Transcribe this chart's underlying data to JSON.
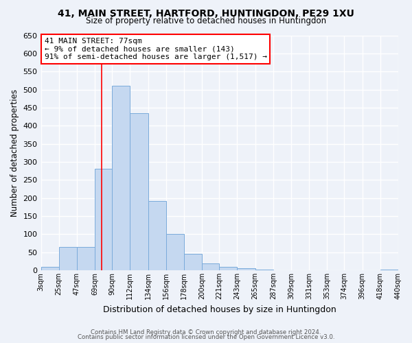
{
  "title": "41, MAIN STREET, HARTFORD, HUNTINGDON, PE29 1XU",
  "subtitle": "Size of property relative to detached houses in Huntingdon",
  "xlabel": "Distribution of detached houses by size in Huntingdon",
  "ylabel": "Number of detached properties",
  "bin_edges": [
    3,
    25,
    47,
    69,
    90,
    112,
    134,
    156,
    178,
    200,
    221,
    243,
    265,
    287,
    309,
    331,
    353,
    374,
    396,
    418,
    440
  ],
  "bin_labels": [
    "3sqm",
    "25sqm",
    "47sqm",
    "69sqm",
    "90sqm",
    "112sqm",
    "134sqm",
    "156sqm",
    "178sqm",
    "200sqm",
    "221sqm",
    "243sqm",
    "265sqm",
    "287sqm",
    "309sqm",
    "331sqm",
    "353sqm",
    "374sqm",
    "396sqm",
    "418sqm",
    "440sqm"
  ],
  "counts": [
    10,
    65,
    65,
    280,
    510,
    435,
    192,
    100,
    46,
    19,
    10,
    5,
    2,
    0,
    0,
    0,
    0,
    0,
    0,
    2
  ],
  "bar_color": "#c5d8f0",
  "bar_edge_color": "#7aabdb",
  "vline_x": 77,
  "vline_color": "red",
  "ylim": [
    0,
    650
  ],
  "yticks": [
    0,
    50,
    100,
    150,
    200,
    250,
    300,
    350,
    400,
    450,
    500,
    550,
    600,
    650
  ],
  "annotation_title": "41 MAIN STREET: 77sqm",
  "annotation_line1": "← 9% of detached houses are smaller (143)",
  "annotation_line2": "91% of semi-detached houses are larger (1,517) →",
  "annotation_box_color": "white",
  "annotation_box_edge": "red",
  "footer1": "Contains HM Land Registry data © Crown copyright and database right 2024.",
  "footer2": "Contains public sector information licensed under the Open Government Licence v3.0.",
  "background_color": "#eef2f9",
  "grid_color": "#d0d8e8"
}
